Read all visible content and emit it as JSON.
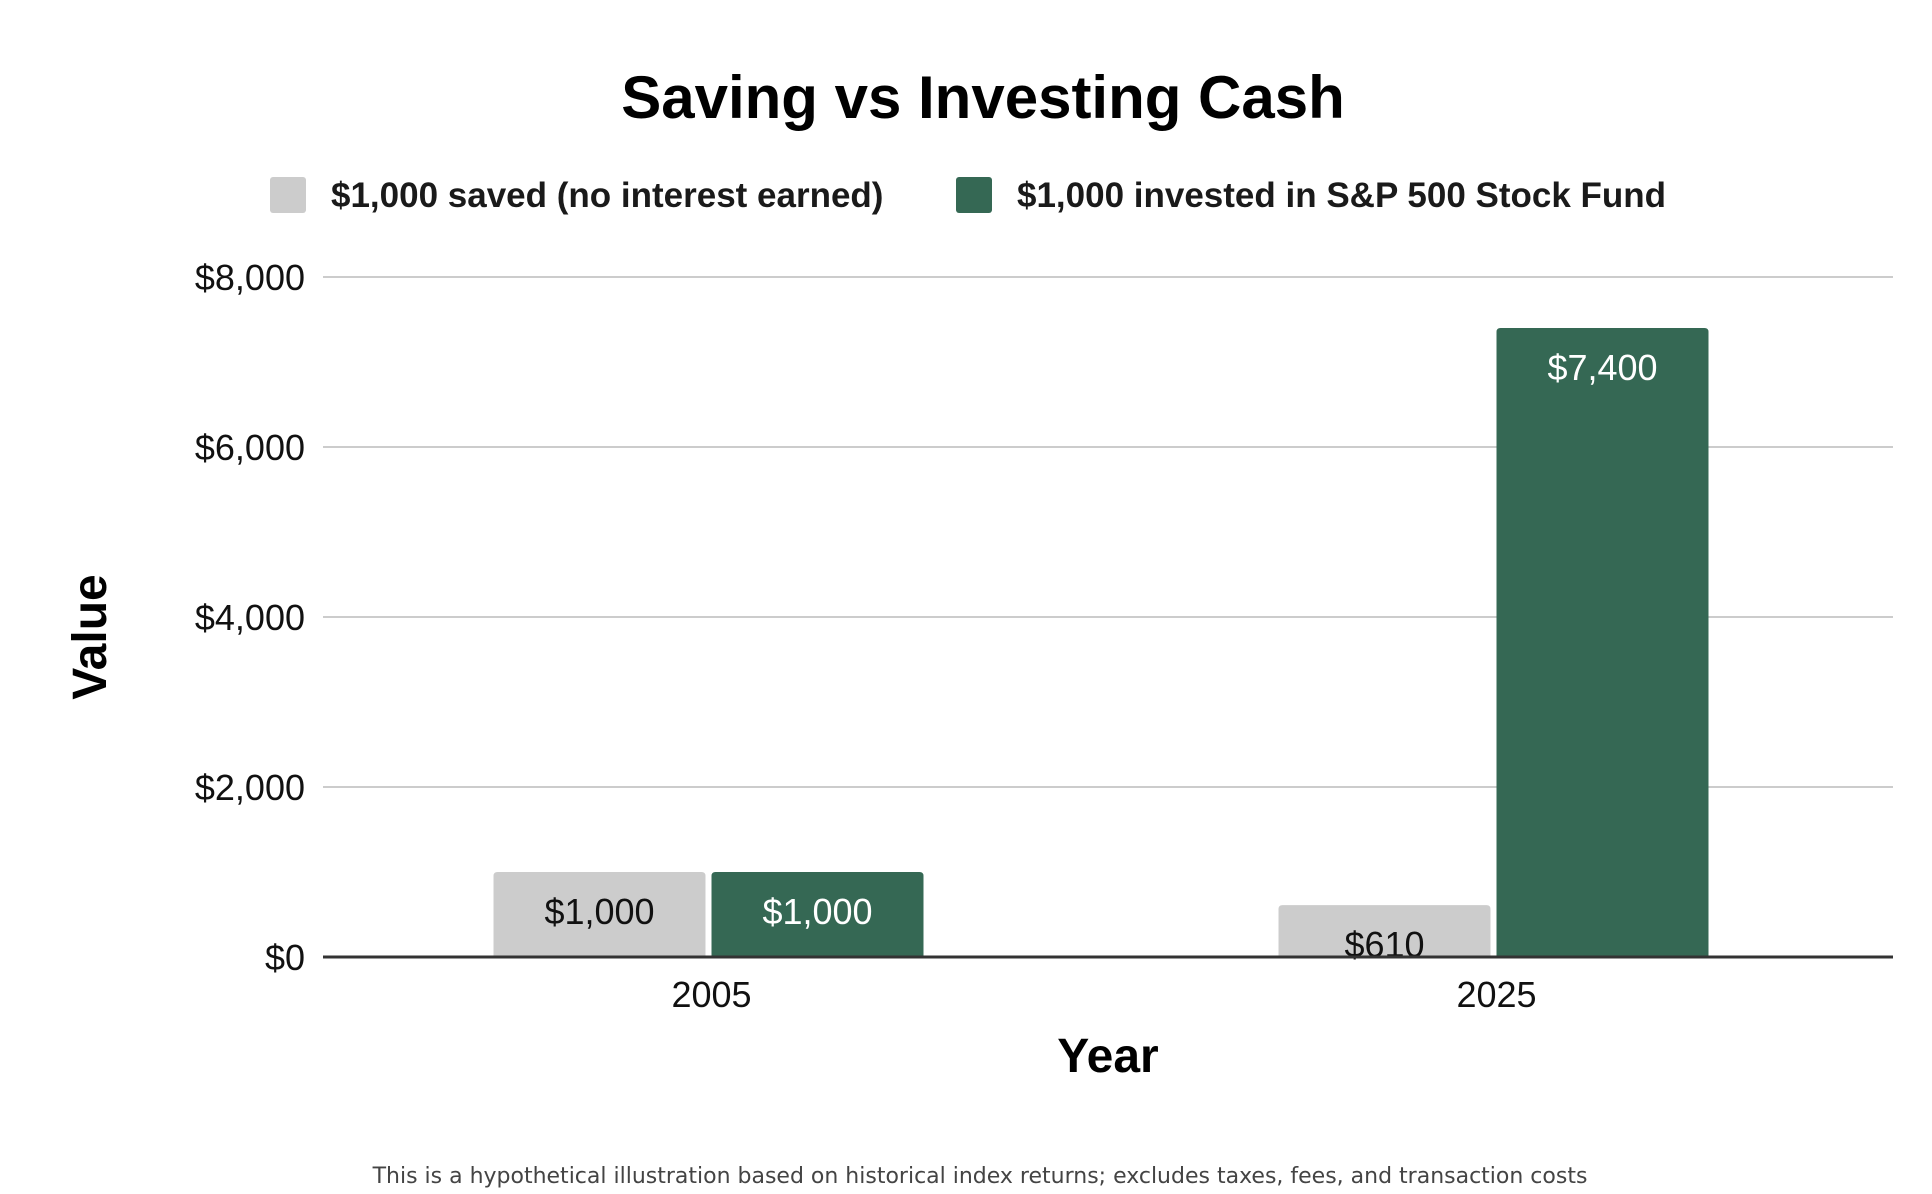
{
  "chart_data": {
    "type": "bar",
    "title": "Saving vs Investing Cash",
    "xlabel": "Year",
    "ylabel": "Value",
    "categories": [
      "2005",
      "2025"
    ],
    "series": [
      {
        "name": "$1,000 saved (no interest earned)",
        "color": "#cccccc",
        "label_color": "#111111",
        "values": [
          1000,
          610
        ],
        "labels": [
          "$1,000",
          "$610"
        ]
      },
      {
        "name": "$1,000 invested in S&P 500 Stock Fund",
        "color": "#356854",
        "label_color": "#ffffff",
        "values": [
          1000,
          7400
        ],
        "labels": [
          "$1,000",
          "$7,400"
        ]
      }
    ],
    "ylim": [
      0,
      8000
    ],
    "yticks": [
      0,
      2000,
      4000,
      6000,
      8000
    ],
    "ytick_labels": [
      "$0",
      "$2,000",
      "$4,000",
      "$6,000",
      "$8,000"
    ],
    "grid": true,
    "legend_position": "top",
    "footnote": "This is a hypothetical illustration based on historical index returns; excludes taxes, fees, and transaction costs"
  }
}
